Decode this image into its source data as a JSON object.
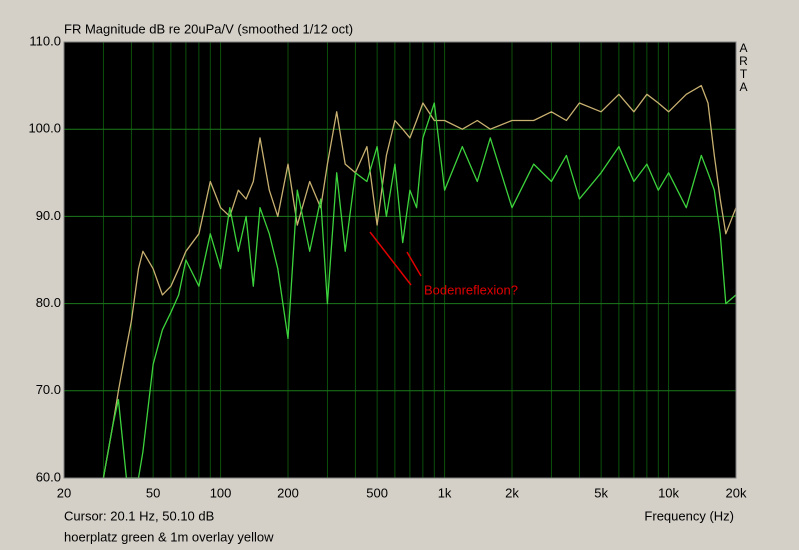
{
  "chart_data": {
    "type": "line",
    "title": "FR Magnitude dB re 20uPa/V (smoothed 1/12 oct)",
    "brand": "ARTA",
    "annotation": "Bodenreflexion?",
    "cursor": "Cursor: 20.1 Hz, 50.10 dB",
    "x_label": "Frequency (Hz)",
    "caption": "hoerplatz green & 1m overlay yellow",
    "x_scale": "log",
    "xlim": [
      20,
      20000
    ],
    "ylim": [
      60,
      110
    ],
    "xticks": [
      20,
      50,
      100,
      200,
      500,
      {
        "value": 1000,
        "label": "1k"
      },
      {
        "value": 2000,
        "label": "2k"
      },
      {
        "value": 5000,
        "label": "5k"
      },
      {
        "value": 10000,
        "label": "10k"
      },
      {
        "value": 20000,
        "label": "20k"
      }
    ],
    "xgrid_minor": [
      30,
      40,
      60,
      70,
      80,
      90,
      300,
      400,
      600,
      700,
      800,
      900,
      3000,
      4000,
      6000,
      7000,
      8000,
      9000
    ],
    "yticks": [
      {
        "value": 60,
        "label": "60.0"
      },
      {
        "value": 70,
        "label": "70.0"
      },
      {
        "value": 80,
        "label": "80.0"
      },
      {
        "value": 90,
        "label": "90.0"
      },
      {
        "value": 100,
        "label": "100.0"
      },
      {
        "value": 110,
        "label": "110.0"
      }
    ],
    "grid": true,
    "x": [
      30,
      33,
      35,
      38,
      40,
      43,
      45,
      50,
      55,
      60,
      65,
      70,
      80,
      90,
      100,
      110,
      120,
      130,
      140,
      150,
      165,
      180,
      200,
      220,
      250,
      280,
      300,
      330,
      360,
      400,
      450,
      500,
      550,
      600,
      650,
      700,
      750,
      800,
      900,
      1000,
      1200,
      1400,
      1600,
      2000,
      2500,
      3000,
      3500,
      4000,
      5000,
      6000,
      7000,
      8000,
      9000,
      10000,
      12000,
      14000,
      15000,
      16000,
      17000,
      18000,
      20000
    ],
    "series": [
      {
        "color": "#c8b070",
        "values": [
          60,
          66,
          70,
          75,
          78,
          84,
          86,
          84,
          81,
          82,
          84,
          86,
          88,
          94,
          91,
          90,
          93,
          92,
          94,
          99,
          93,
          90,
          96,
          89,
          94,
          91,
          96,
          102,
          96,
          95,
          98,
          89,
          97,
          101,
          100,
          99,
          101,
          103,
          101,
          101,
          100,
          101,
          100,
          101,
          101,
          102,
          101,
          103,
          102,
          104,
          102,
          104,
          103,
          102,
          104,
          105,
          103,
          97,
          92,
          88,
          91
        ]
      },
      {
        "color": "#3cd23c",
        "values": [
          60,
          66,
          69,
          60,
          60,
          60,
          63,
          73,
          77,
          79,
          81,
          85,
          82,
          88,
          84,
          91,
          86,
          90,
          82,
          91,
          88,
          84,
          76,
          93,
          86,
          92,
          80,
          95,
          86,
          95,
          94,
          98,
          90,
          96,
          87,
          93,
          91,
          99,
          103,
          93,
          98,
          94,
          99,
          91,
          96,
          94,
          97,
          92,
          95,
          98,
          94,
          96,
          93,
          95,
          91,
          97,
          95,
          93,
          88,
          80,
          81
        ]
      }
    ]
  }
}
